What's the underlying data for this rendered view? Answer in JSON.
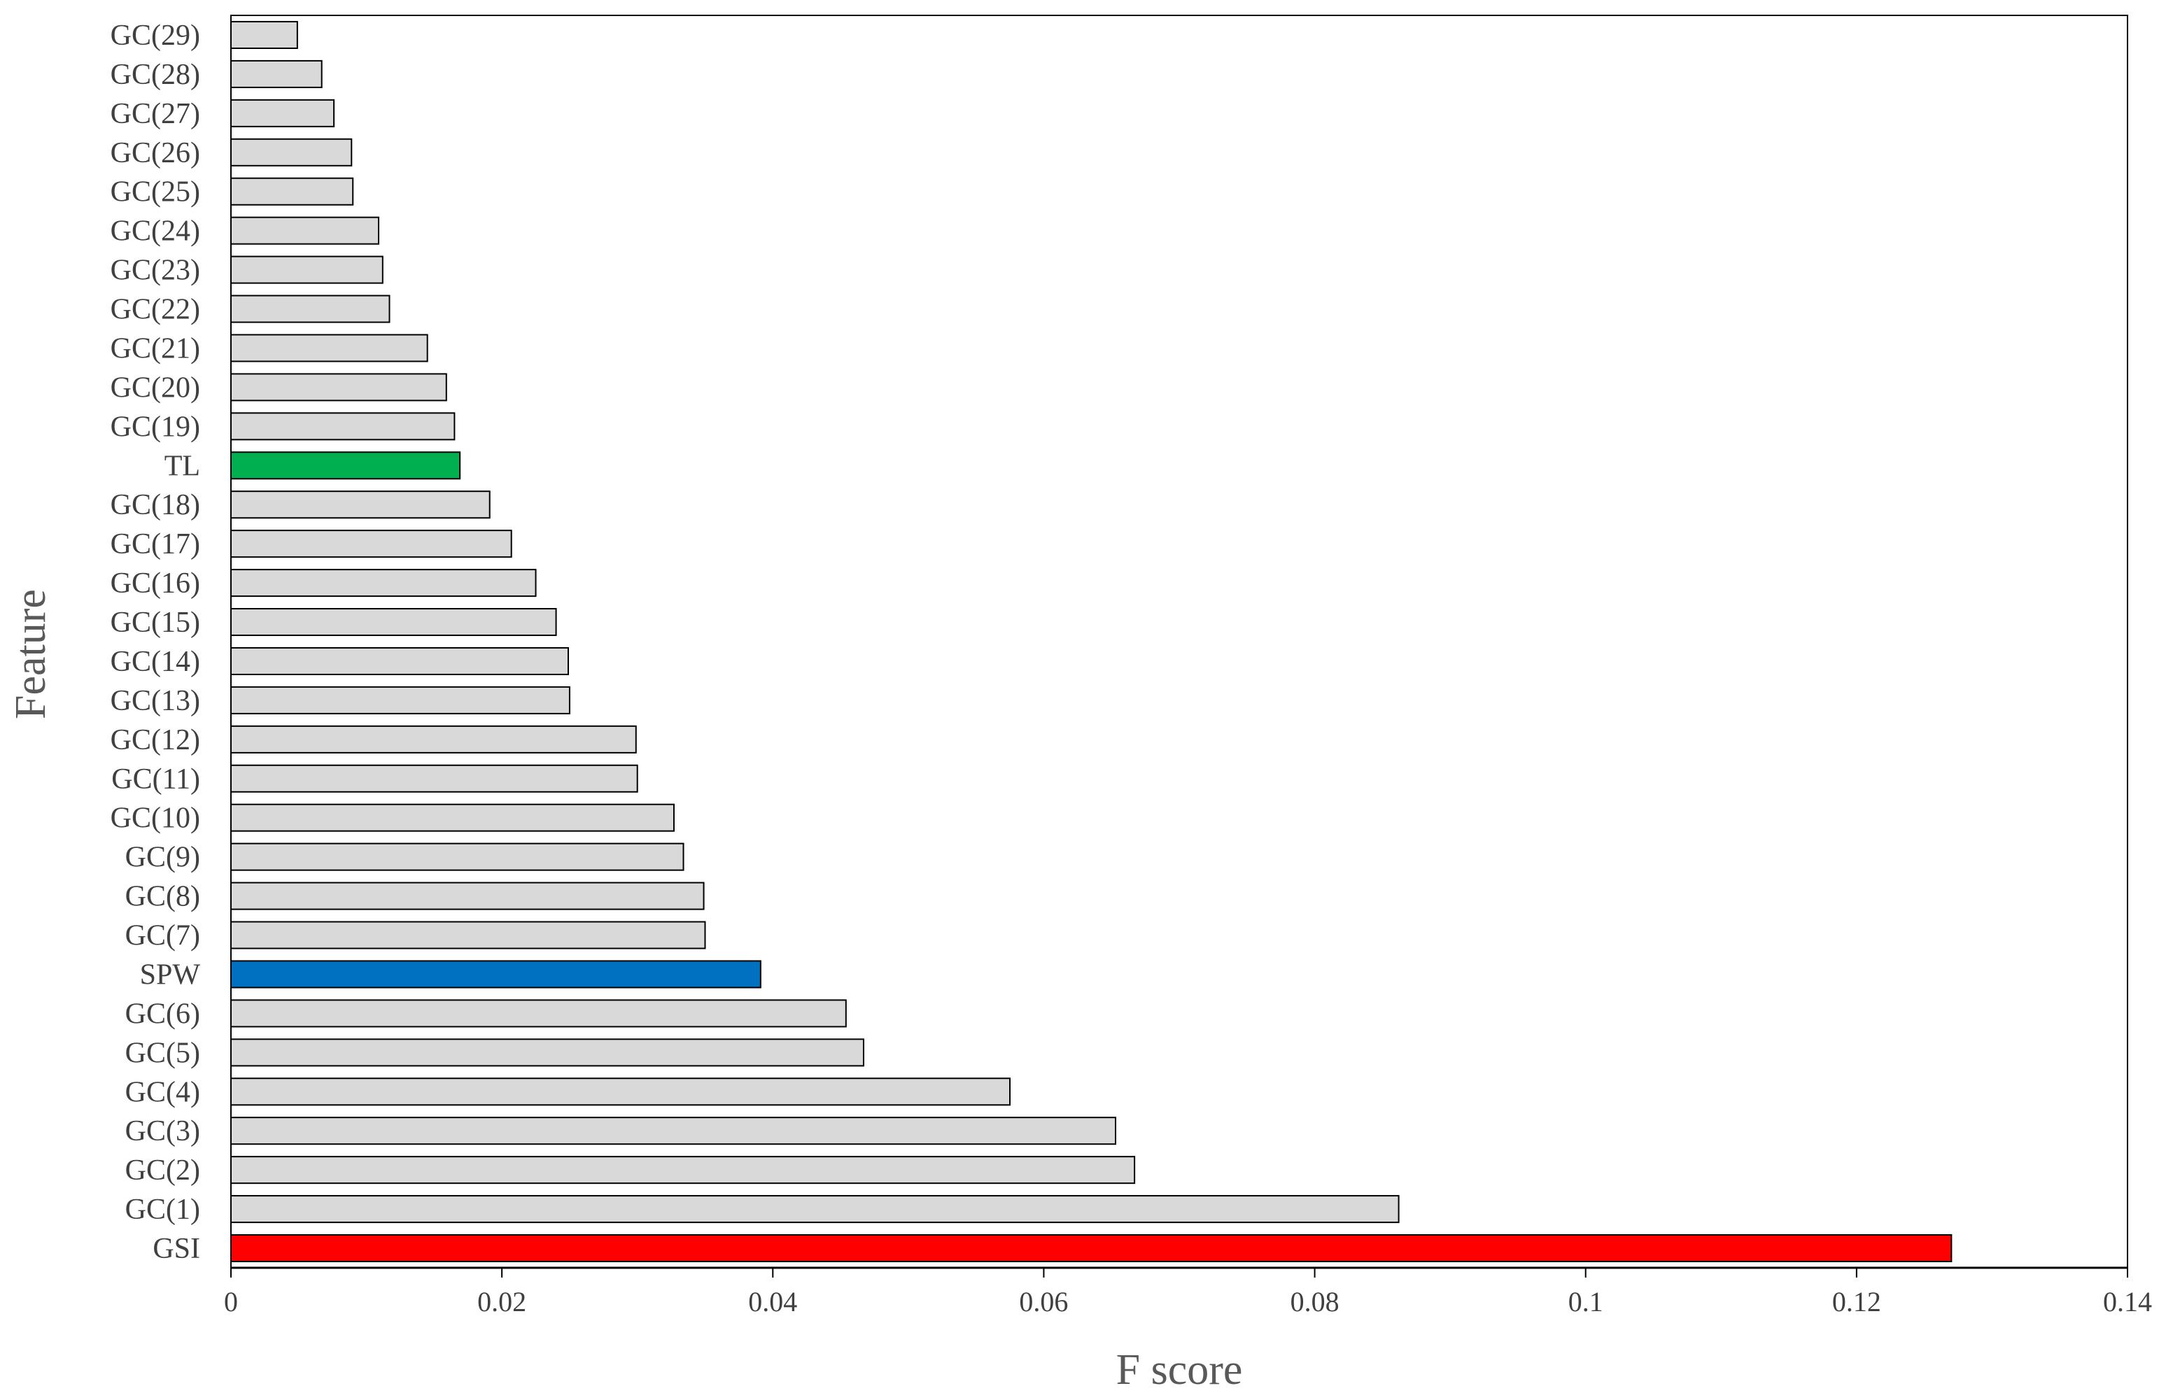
{
  "chart_data": {
    "type": "bar",
    "orientation": "horizontal",
    "xlabel": "F score",
    "ylabel": "Feature",
    "xlim": [
      0,
      0.14
    ],
    "xticks": [
      0,
      0.02,
      0.04,
      0.06,
      0.08,
      0.1,
      0.12,
      0.14
    ],
    "xtick_labels": [
      "0",
      "0.02",
      "0.04",
      "0.06",
      "0.08",
      "0.1",
      "0.12",
      "0.14"
    ],
    "grid": false,
    "legend": "none",
    "default_bar_color": "#d9d9d9",
    "categories": [
      "GSI",
      "GC(1)",
      "GC(2)",
      "GC(3)",
      "GC(4)",
      "GC(5)",
      "GC(6)",
      "SPW",
      "GC(7)",
      "GC(8)",
      "GC(9)",
      "GC(10)",
      "GC(11)",
      "GC(12)",
      "GC(13)",
      "GC(14)",
      "GC(15)",
      "GC(16)",
      "GC(17)",
      "GC(18)",
      "TL",
      "GC(19)",
      "GC(20)",
      "GC(21)",
      "GC(22)",
      "GC(23)",
      "GC(24)",
      "GC(25)",
      "GC(26)",
      "GC(27)",
      "GC(28)",
      "GC(29)"
    ],
    "values": [
      0.127,
      0.0862,
      0.0667,
      0.0653,
      0.0575,
      0.0467,
      0.0454,
      0.0391,
      0.035,
      0.0349,
      0.0334,
      0.0327,
      0.03,
      0.0299,
      0.025,
      0.0249,
      0.024,
      0.0225,
      0.0207,
      0.0191,
      0.0169,
      0.0165,
      0.0159,
      0.0145,
      0.0117,
      0.0112,
      0.0109,
      0.009,
      0.0089,
      0.0076,
      0.0067,
      0.0049
    ],
    "highlight_colors": {
      "GSI": "#ff0000",
      "SPW": "#0070c0",
      "TL": "#00b050"
    }
  }
}
